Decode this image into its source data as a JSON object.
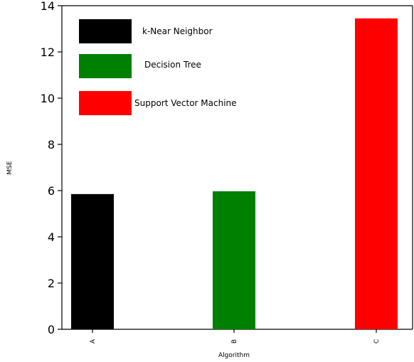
{
  "chart_data": {
    "type": "bar",
    "categories": [
      "A",
      "B",
      "C"
    ],
    "values": [
      5.85,
      5.97,
      13.45
    ],
    "colors": [
      "#000000",
      "#008000",
      "#ff0000"
    ],
    "xlabel": "Algorithm",
    "ylabel": "MSE",
    "ylim": [
      0,
      14
    ],
    "yticks": [
      0,
      2,
      4,
      6,
      8,
      10,
      12,
      14
    ],
    "grid": false,
    "legend": {
      "placement": "upper-left",
      "entries": [
        {
          "label": "k-Near Neighbor",
          "color": "#000000"
        },
        {
          "label": "Decision Tree",
          "color": "#008000"
        },
        {
          "label": "Support Vector Machine",
          "color": "#ff0000"
        }
      ]
    }
  }
}
